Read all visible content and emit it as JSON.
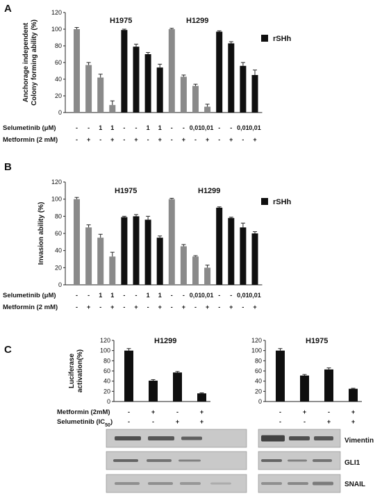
{
  "colors": {
    "gray": "#8a8a8a",
    "black": "#0f0f0f",
    "blot_bg": "#c9c9c9",
    "band": "#3a3a3a"
  },
  "panels": {
    "A": {
      "letter": "A",
      "legend": "rSHh",
      "cell_lines": [
        "H1975",
        "H1299"
      ]
    },
    "B": {
      "letter": "B",
      "legend": "rSHh",
      "cell_lines": [
        "H1975",
        "H1299"
      ]
    },
    "C": {
      "letter": "C"
    }
  },
  "condition_rows": {
    "selumetinib_label": "Selumetinib (μM)",
    "metformin_label": "Metformin  (2 mM)",
    "selumetinib": [
      "-",
      "-",
      "1",
      "1",
      "-",
      "-",
      "1",
      "1",
      "-",
      "-",
      "0,01",
      "0,01",
      "-",
      "-",
      "0,01",
      "0,01"
    ],
    "metformin": [
      "-",
      "+",
      "-",
      "+",
      "-",
      "+",
      "-",
      "+",
      "-",
      "+",
      "-",
      "+",
      "-",
      "+",
      "-",
      "+"
    ]
  },
  "panelC_rows": {
    "metformin_label": "Metformin  (2mM)",
    "selumetinib_label_main": "Selumetinib (IC",
    "selumetinib_label_sub": "50",
    "selumetinib_label_end": ")",
    "metformin": [
      "-",
      "+",
      "-",
      "+"
    ],
    "selumetinib": [
      "-",
      "-",
      "+",
      "+"
    ]
  },
  "blots": {
    "labels": [
      "Vimentin",
      "GLI1",
      "SNAIL"
    ]
  },
  "chart_data": [
    {
      "type": "bar",
      "panel": "A",
      "ylabel": [
        "Anchorage independent",
        "Colony forming ability (%)"
      ],
      "ylim": [
        0,
        120
      ],
      "yticks": [
        0,
        20,
        40,
        60,
        80,
        100,
        120
      ],
      "values": [
        100,
        57,
        42,
        9,
        99,
        79,
        70,
        54,
        100,
        43,
        32,
        7,
        97,
        83,
        56,
        45
      ],
      "errors": [
        2,
        3,
        4,
        5,
        1,
        3,
        2,
        4,
        1,
        2,
        2,
        3,
        1,
        2,
        4,
        6
      ],
      "colors": [
        "gray",
        "gray",
        "gray",
        "gray",
        "black",
        "black",
        "black",
        "black",
        "gray",
        "gray",
        "gray",
        "gray",
        "black",
        "black",
        "black",
        "black"
      ],
      "legend": "rSHh"
    },
    {
      "type": "bar",
      "panel": "B",
      "ylabel": [
        "Invasion ability (%)"
      ],
      "ylim": [
        0,
        120
      ],
      "yticks": [
        0,
        20,
        40,
        60,
        80,
        100,
        120
      ],
      "values": [
        100,
        67,
        55,
        33,
        79,
        80,
        76,
        55,
        100,
        45,
        33,
        20,
        90,
        78,
        67,
        60
      ],
      "errors": [
        2,
        3,
        4,
        5,
        1,
        2,
        4,
        2,
        1,
        2,
        1,
        3,
        1,
        1,
        5,
        2
      ],
      "colors": [
        "gray",
        "gray",
        "gray",
        "gray",
        "black",
        "black",
        "black",
        "black",
        "gray",
        "gray",
        "gray",
        "gray",
        "black",
        "black",
        "black",
        "black"
      ],
      "legend": "rSHh"
    },
    {
      "type": "bar",
      "panel": "C",
      "title": "H1299",
      "ylabel": [
        "Luciferase",
        "activation(%)"
      ],
      "ylim": [
        0,
        120
      ],
      "yticks": [
        0,
        20,
        40,
        60,
        80,
        100,
        120
      ],
      "values": [
        100,
        41,
        57,
        16
      ],
      "errors": [
        4,
        2,
        2,
        1
      ]
    },
    {
      "type": "bar",
      "panel": "C",
      "title": "H1975",
      "ylabel": [],
      "ylim": [
        0,
        120
      ],
      "yticks": [
        0,
        20,
        40,
        60,
        80,
        100,
        120
      ],
      "values": [
        100,
        51,
        63,
        25
      ],
      "errors": [
        4,
        2,
        3,
        1
      ]
    }
  ]
}
